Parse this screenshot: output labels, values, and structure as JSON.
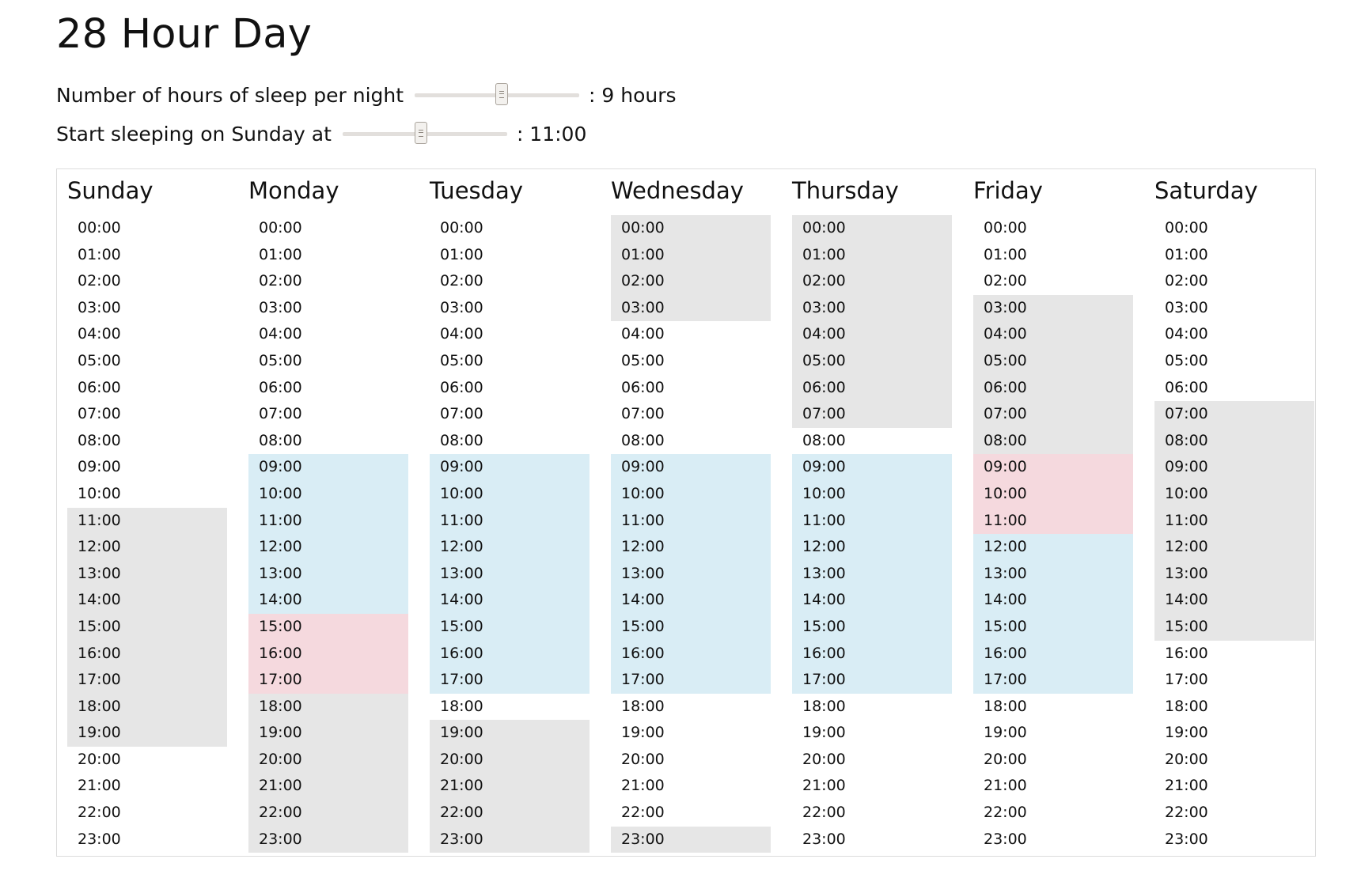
{
  "title": "28 Hour Day",
  "controls": {
    "sleep_hours": {
      "label": "Number of hours of sleep per night",
      "value_text": ": 9 hours",
      "min": 0,
      "max": 17,
      "value": 9
    },
    "start_time": {
      "label": "Start sleeping on Sunday at",
      "value_text": ": 11:00",
      "min": 0,
      "max": 23,
      "value": 11
    }
  },
  "legend_colors": {
    "sleep": "#e6e6e6",
    "work": "#d9edf5",
    "work_while_tired": "#f5d9de"
  },
  "hours": [
    "00:00",
    "01:00",
    "02:00",
    "03:00",
    "04:00",
    "05:00",
    "06:00",
    "07:00",
    "08:00",
    "09:00",
    "10:00",
    "11:00",
    "12:00",
    "13:00",
    "14:00",
    "15:00",
    "16:00",
    "17:00",
    "18:00",
    "19:00",
    "20:00",
    "21:00",
    "22:00",
    "23:00"
  ],
  "days": [
    {
      "name": "Sunday",
      "sleep": [
        11,
        12,
        13,
        14,
        15,
        16,
        17,
        18,
        19
      ],
      "work": [],
      "alert": []
    },
    {
      "name": "Monday",
      "sleep": [
        18,
        19,
        20,
        21,
        22,
        23
      ],
      "work": [
        9,
        10,
        11,
        12,
        13,
        14
      ],
      "alert": [
        15,
        16,
        17
      ]
    },
    {
      "name": "Tuesday",
      "sleep": [
        19,
        20,
        21,
        22,
        23
      ],
      "work": [
        9,
        10,
        11,
        12,
        13,
        14,
        15,
        16,
        17
      ],
      "alert": []
    },
    {
      "name": "Wednesday",
      "sleep": [
        0,
        1,
        2,
        3,
        23
      ],
      "work": [
        9,
        10,
        11,
        12,
        13,
        14,
        15,
        16,
        17
      ],
      "alert": []
    },
    {
      "name": "Thursday",
      "sleep": [
        0,
        1,
        2,
        3,
        4,
        5,
        6,
        7
      ],
      "work": [
        9,
        10,
        11,
        12,
        13,
        14,
        15,
        16,
        17
      ],
      "alert": []
    },
    {
      "name": "Friday",
      "sleep": [
        3,
        4,
        5,
        6,
        7,
        8
      ],
      "work": [
        12,
        13,
        14,
        15,
        16,
        17
      ],
      "alert": [
        9,
        10,
        11
      ]
    },
    {
      "name": "Saturday",
      "sleep": [
        7,
        8,
        9,
        10,
        11,
        12,
        13,
        14,
        15
      ],
      "work": [],
      "alert": []
    }
  ]
}
